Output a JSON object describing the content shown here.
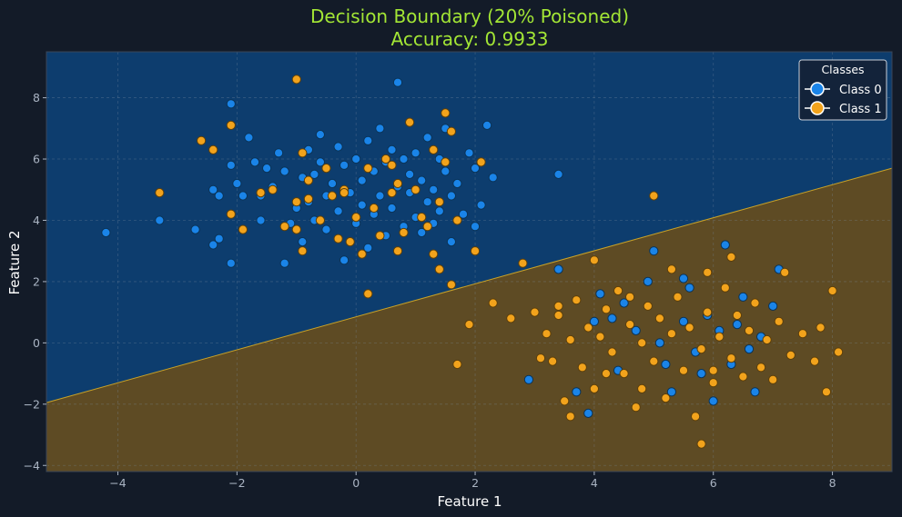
{
  "chart_data": {
    "type": "scatter",
    "title": [
      "Decision Boundary (20% Poisoned)",
      "Accuracy: 0.9933"
    ],
    "xlabel": "Feature 1",
    "ylabel": "Feature 2",
    "xlim": [
      -5.2,
      9.0
    ],
    "ylim": [
      -4.2,
      9.5
    ],
    "xticks": [
      -4,
      -2,
      0,
      2,
      4,
      6,
      8
    ],
    "yticks": [
      -4,
      -2,
      0,
      2,
      4,
      6,
      8
    ],
    "xtick_labels": [
      "−4",
      "−2",
      "0",
      "2",
      "4",
      "6",
      "8"
    ],
    "ytick_labels": [
      "−4",
      "−2",
      "0",
      "2",
      "4",
      "6",
      "8"
    ],
    "grid": true,
    "legend": {
      "title": "Classes",
      "placement": "top-right"
    },
    "decision_boundary": {
      "points": [
        [
          -5.2,
          -1.95
        ],
        [
          9.0,
          5.7
        ]
      ],
      "region_class_0_color": "#0d3d6e",
      "region_class_1_color": "#5e4b24",
      "line_color": "#c9a227"
    },
    "series": [
      {
        "name": "Class 0",
        "color": "#1a84e8",
        "edge": "#0a3357",
        "points": [
          [
            -4.2,
            3.6
          ],
          [
            -3.3,
            4.0
          ],
          [
            -2.7,
            3.7
          ],
          [
            -2.4,
            3.2
          ],
          [
            -2.3,
            3.4
          ],
          [
            -2.4,
            5.0
          ],
          [
            -2.3,
            4.8
          ],
          [
            -2.1,
            5.8
          ],
          [
            -2.1,
            7.8
          ],
          [
            -2.1,
            2.6
          ],
          [
            -2.0,
            5.2
          ],
          [
            -1.9,
            4.8
          ],
          [
            -1.8,
            6.7
          ],
          [
            -1.7,
            5.9
          ],
          [
            -1.6,
            4.8
          ],
          [
            -1.6,
            4.0
          ],
          [
            -1.5,
            5.7
          ],
          [
            -1.4,
            5.1
          ],
          [
            -1.3,
            6.2
          ],
          [
            -1.2,
            5.6
          ],
          [
            -1.2,
            2.6
          ],
          [
            -1.1,
            3.9
          ],
          [
            -1.0,
            4.4
          ],
          [
            -0.9,
            5.4
          ],
          [
            -0.9,
            3.3
          ],
          [
            -0.8,
            4.6
          ],
          [
            -0.8,
            6.3
          ],
          [
            -0.7,
            5.5
          ],
          [
            -0.7,
            4.0
          ],
          [
            -0.6,
            6.8
          ],
          [
            -0.6,
            5.9
          ],
          [
            -0.5,
            4.8
          ],
          [
            -0.5,
            3.7
          ],
          [
            -0.4,
            5.2
          ],
          [
            -0.3,
            6.4
          ],
          [
            -0.3,
            4.3
          ],
          [
            -0.2,
            5.8
          ],
          [
            -0.2,
            2.7
          ],
          [
            -0.1,
            4.9
          ],
          [
            0.0,
            6.0
          ],
          [
            0.0,
            3.9
          ],
          [
            0.1,
            5.3
          ],
          [
            0.1,
            4.5
          ],
          [
            0.2,
            6.6
          ],
          [
            0.2,
            3.1
          ],
          [
            0.3,
            5.6
          ],
          [
            0.3,
            4.2
          ],
          [
            0.4,
            7.0
          ],
          [
            0.4,
            4.8
          ],
          [
            0.5,
            5.9
          ],
          [
            0.5,
            3.5
          ],
          [
            0.6,
            6.3
          ],
          [
            0.6,
            4.4
          ],
          [
            0.7,
            5.1
          ],
          [
            0.7,
            8.5
          ],
          [
            0.8,
            3.8
          ],
          [
            0.8,
            6.0
          ],
          [
            0.9,
            4.9
          ],
          [
            0.9,
            5.5
          ],
          [
            1.0,
            6.2
          ],
          [
            1.0,
            4.1
          ],
          [
            1.1,
            5.3
          ],
          [
            1.1,
            3.6
          ],
          [
            1.2,
            6.7
          ],
          [
            1.2,
            4.6
          ],
          [
            1.3,
            5.0
          ],
          [
            1.3,
            3.9
          ],
          [
            1.4,
            6.0
          ],
          [
            1.4,
            4.3
          ],
          [
            1.5,
            5.6
          ],
          [
            1.5,
            7.0
          ],
          [
            1.6,
            4.8
          ],
          [
            1.6,
            3.3
          ],
          [
            1.7,
            5.2
          ],
          [
            1.8,
            4.2
          ],
          [
            1.9,
            6.2
          ],
          [
            2.0,
            5.7
          ],
          [
            2.0,
            3.8
          ],
          [
            2.1,
            4.5
          ],
          [
            2.2,
            7.1
          ],
          [
            2.3,
            5.4
          ],
          [
            3.4,
            5.5
          ],
          [
            3.4,
            2.4
          ],
          [
            4.1,
            1.6
          ],
          [
            4.3,
            0.8
          ],
          [
            4.5,
            1.3
          ],
          [
            4.7,
            0.4
          ],
          [
            4.9,
            2.0
          ],
          [
            5.0,
            3.0
          ],
          [
            5.1,
            0.0
          ],
          [
            5.2,
            -0.7
          ],
          [
            5.3,
            -1.6
          ],
          [
            5.5,
            0.7
          ],
          [
            5.6,
            1.8
          ],
          [
            5.7,
            -0.3
          ],
          [
            5.8,
            -1.0
          ],
          [
            5.9,
            0.9
          ],
          [
            6.0,
            -1.9
          ],
          [
            6.1,
            0.4
          ],
          [
            6.2,
            3.2
          ],
          [
            6.3,
            -0.7
          ],
          [
            6.4,
            0.6
          ],
          [
            6.5,
            1.5
          ],
          [
            6.6,
            -0.2
          ],
          [
            6.7,
            -1.6
          ],
          [
            6.8,
            0.2
          ],
          [
            7.0,
            1.2
          ],
          [
            7.1,
            2.4
          ],
          [
            2.9,
            -1.2
          ],
          [
            3.7,
            -1.6
          ],
          [
            3.9,
            -2.3
          ],
          [
            4.0,
            0.7
          ],
          [
            4.4,
            -0.9
          ],
          [
            5.5,
            2.1
          ]
        ]
      },
      {
        "name": "Class 1",
        "color": "#f2a31c",
        "edge": "#5c3f0a",
        "points": [
          [
            -3.3,
            4.9
          ],
          [
            -2.6,
            6.6
          ],
          [
            -2.4,
            6.3
          ],
          [
            -2.1,
            7.1
          ],
          [
            -2.1,
            4.2
          ],
          [
            -1.9,
            3.7
          ],
          [
            -1.6,
            4.9
          ],
          [
            -1.4,
            5.0
          ],
          [
            -1.2,
            3.8
          ],
          [
            -1.0,
            3.7
          ],
          [
            -1.0,
            4.6
          ],
          [
            -0.9,
            3.0
          ],
          [
            -0.9,
            6.2
          ],
          [
            -0.8,
            5.3
          ],
          [
            -0.6,
            4.0
          ],
          [
            -0.5,
            5.7
          ],
          [
            -0.4,
            4.8
          ],
          [
            -0.2,
            5.0
          ],
          [
            -0.1,
            3.3
          ],
          [
            0.0,
            4.1
          ],
          [
            0.1,
            2.9
          ],
          [
            0.2,
            5.7
          ],
          [
            0.3,
            4.4
          ],
          [
            0.4,
            3.5
          ],
          [
            0.5,
            6.0
          ],
          [
            0.6,
            4.9
          ],
          [
            0.7,
            5.2
          ],
          [
            0.7,
            3.0
          ],
          [
            0.8,
            3.6
          ],
          [
            0.9,
            7.2
          ],
          [
            1.0,
            5.0
          ],
          [
            1.1,
            4.1
          ],
          [
            1.2,
            3.8
          ],
          [
            1.3,
            6.3
          ],
          [
            1.4,
            4.6
          ],
          [
            1.5,
            5.9
          ],
          [
            1.5,
            7.5
          ],
          [
            1.6,
            6.9
          ],
          [
            1.7,
            4.0
          ],
          [
            2.0,
            3.0
          ],
          [
            2.1,
            5.9
          ],
          [
            -0.3,
            3.4
          ],
          [
            0.2,
            1.6
          ],
          [
            -1.0,
            8.6
          ],
          [
            -0.2,
            4.9
          ],
          [
            1.4,
            2.4
          ],
          [
            1.6,
            1.9
          ],
          [
            0.6,
            5.8
          ],
          [
            1.3,
            2.9
          ],
          [
            -0.8,
            4.7
          ],
          [
            2.3,
            1.3
          ],
          [
            2.8,
            2.6
          ],
          [
            3.0,
            1.0
          ],
          [
            3.2,
            0.3
          ],
          [
            3.3,
            -0.6
          ],
          [
            3.4,
            0.9
          ],
          [
            3.5,
            -1.9
          ],
          [
            3.6,
            0.1
          ],
          [
            3.7,
            1.4
          ],
          [
            3.8,
            -0.8
          ],
          [
            3.9,
            0.5
          ],
          [
            4.0,
            -1.5
          ],
          [
            4.1,
            0.2
          ],
          [
            4.2,
            1.1
          ],
          [
            4.3,
            -0.3
          ],
          [
            4.4,
            1.7
          ],
          [
            4.5,
            -1.0
          ],
          [
            4.6,
            0.6
          ],
          [
            4.7,
            -2.1
          ],
          [
            4.8,
            0.0
          ],
          [
            4.9,
            1.2
          ],
          [
            5.0,
            -0.6
          ],
          [
            5.1,
            0.8
          ],
          [
            5.2,
            -1.8
          ],
          [
            5.3,
            0.3
          ],
          [
            5.4,
            1.5
          ],
          [
            5.5,
            -0.9
          ],
          [
            5.6,
            0.5
          ],
          [
            5.7,
            -2.4
          ],
          [
            5.8,
            -0.2
          ],
          [
            5.9,
            1.0
          ],
          [
            6.0,
            -1.3
          ],
          [
            6.1,
            0.2
          ],
          [
            6.2,
            1.8
          ],
          [
            6.3,
            -0.5
          ],
          [
            6.4,
            0.9
          ],
          [
            6.5,
            -1.1
          ],
          [
            6.6,
            0.4
          ],
          [
            6.7,
            1.3
          ],
          [
            6.8,
            -0.8
          ],
          [
            6.9,
            0.1
          ],
          [
            7.0,
            -1.2
          ],
          [
            7.1,
            0.7
          ],
          [
            7.2,
            2.3
          ],
          [
            7.3,
            -0.4
          ],
          [
            7.5,
            0.3
          ],
          [
            7.7,
            -0.6
          ],
          [
            7.8,
            0.5
          ],
          [
            7.9,
            -1.6
          ],
          [
            8.0,
            1.7
          ],
          [
            8.1,
            -0.3
          ],
          [
            5.0,
            4.8
          ],
          [
            4.0,
            2.7
          ],
          [
            1.7,
            -0.7
          ],
          [
            1.9,
            0.6
          ],
          [
            5.8,
            -3.3
          ],
          [
            6.3,
            2.8
          ],
          [
            4.6,
            1.5
          ],
          [
            5.3,
            2.4
          ],
          [
            3.6,
            -2.4
          ],
          [
            4.2,
            -1.0
          ],
          [
            3.1,
            -0.5
          ],
          [
            5.9,
            2.3
          ],
          [
            6.0,
            -0.9
          ],
          [
            4.8,
            -1.5
          ],
          [
            3.4,
            1.2
          ],
          [
            2.6,
            0.8
          ]
        ]
      }
    ]
  }
}
